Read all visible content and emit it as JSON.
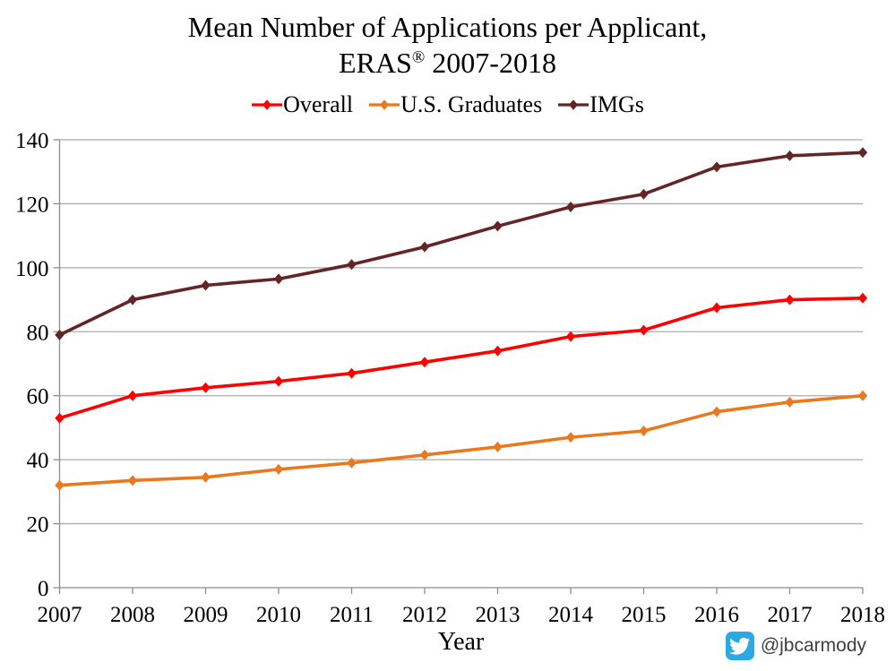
{
  "title": {
    "line1": "Mean Number of Applications per Applicant,",
    "line2_pre": "ERAS",
    "line2_sup": "®",
    "line2_post": " 2007-2018"
  },
  "chart_data": {
    "type": "line",
    "categories": [
      "2007",
      "2008",
      "2009",
      "2010",
      "2011",
      "2012",
      "2013",
      "2014",
      "2015",
      "2016",
      "2017",
      "2018"
    ],
    "series": [
      {
        "name": "Overall",
        "color": "#FF0000",
        "values": [
          53,
          60,
          62.5,
          64.5,
          67,
          70.5,
          74,
          78.5,
          80.5,
          87.5,
          90,
          90.5
        ]
      },
      {
        "name": "U.S. Graduates",
        "color": "#E8791E",
        "values": [
          32,
          33.5,
          34.5,
          37,
          39,
          41.5,
          44,
          47,
          49,
          55,
          58,
          60
        ]
      },
      {
        "name": "IMGs",
        "color": "#632525",
        "values": [
          79,
          90,
          94.5,
          96.5,
          101,
          106.5,
          113,
          119,
          123,
          131.5,
          135,
          136
        ]
      }
    ],
    "xlabel": "Year",
    "ylabel": "",
    "ylim": [
      0,
      140
    ],
    "y_ticks": [
      0,
      20,
      40,
      60,
      80,
      100,
      120,
      140
    ],
    "grid": "horizontal",
    "legend_position": "top",
    "marker": "diamond"
  },
  "watermark": {
    "handle": "@jbcarmody",
    "icon": "twitter-bird-icon",
    "icon_color": "#2DA9E1"
  },
  "style_colors": {
    "gridline": "#ABABAB",
    "axis": "#8C8C8C",
    "tick_text": "#000000"
  }
}
